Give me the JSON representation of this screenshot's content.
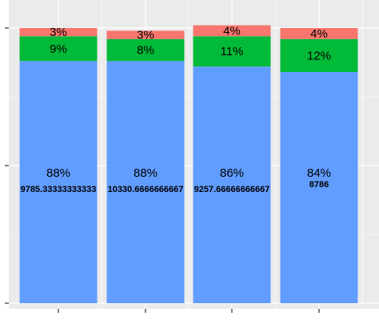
{
  "chart_data": {
    "type": "bar",
    "stacked": true,
    "title": "",
    "xlabel": "",
    "ylabel": "",
    "ylim": [
      0,
      1.088
    ],
    "grid": true,
    "legend": "none",
    "bars": [
      {
        "segments": [
          {
            "value": 0.88,
            "label": "88%",
            "color": "#619CFF"
          },
          {
            "value": 0.09,
            "label": "9%",
            "color": "#00BA38"
          },
          {
            "value": 0.03,
            "label": "3%",
            "color": "#F8766D"
          }
        ],
        "count_label": "9785.33333333333"
      },
      {
        "segments": [
          {
            "value": 0.88,
            "label": "88%",
            "color": "#619CFF"
          },
          {
            "value": 0.08,
            "label": "8%",
            "color": "#00BA38"
          },
          {
            "value": 0.03,
            "label": "3%",
            "color": "#F8766D"
          }
        ],
        "count_label": "10330.6666666667"
      },
      {
        "segments": [
          {
            "value": 0.86,
            "label": "86%",
            "color": "#619CFF"
          },
          {
            "value": 0.11,
            "label": "11%",
            "color": "#00BA38"
          },
          {
            "value": 0.04,
            "label": "4%",
            "color": "#F8766D"
          }
        ],
        "count_label": "9257.66666666667"
      },
      {
        "segments": [
          {
            "value": 0.84,
            "label": "84%",
            "color": "#619CFF"
          },
          {
            "value": 0.12,
            "label": "12%",
            "color": "#00BA38"
          },
          {
            "value": 0.04,
            "label": "4%",
            "color": "#F8766D"
          }
        ],
        "count_label": "8786"
      }
    ],
    "colors": {
      "panel_background": "#EBEBEB",
      "grid": "#FFFFFF",
      "tick": "#333333"
    }
  }
}
